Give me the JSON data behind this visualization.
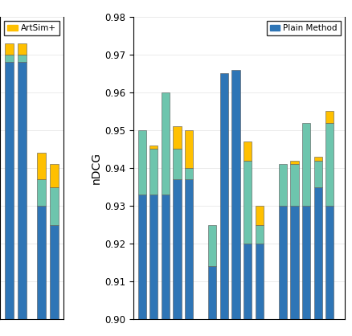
{
  "ylabel": "nDCG",
  "ylim": [
    0.9,
    0.98
  ],
  "yticks": [
    0.9,
    0.91,
    0.92,
    0.93,
    0.94,
    0.95,
    0.96,
    0.97,
    0.98
  ],
  "colors": {
    "plain": "#2E75B6",
    "mid": "#6DC5AD",
    "artsim": "#FFC000"
  },
  "left_bars": [
    {
      "plain": 0.968,
      "mid": 0.002,
      "artsim": 0.003
    },
    {
      "plain": 0.968,
      "mid": 0.002,
      "artsim": 0.003
    },
    {
      "plain": 0.93,
      "mid": 0.007,
      "artsim": 0.007
    },
    {
      "plain": 0.925,
      "mid": 0.01,
      "artsim": 0.006
    }
  ],
  "right_groups": [
    [
      {
        "plain": 0.933,
        "mid": 0.017,
        "artsim": 0.0
      },
      {
        "plain": 0.933,
        "mid": 0.012,
        "artsim": 0.001
      },
      {
        "plain": 0.933,
        "mid": 0.027,
        "artsim": 0.0
      },
      {
        "plain": 0.937,
        "mid": 0.008,
        "artsim": 0.006
      },
      {
        "plain": 0.937,
        "mid": 0.003,
        "artsim": 0.01
      }
    ],
    [
      {
        "plain": 0.914,
        "mid": 0.011,
        "artsim": 0.0
      },
      {
        "plain": 0.965,
        "mid": 0.0,
        "artsim": 0.0
      },
      {
        "plain": 0.966,
        "mid": 0.0,
        "artsim": 0.0
      },
      {
        "plain": 0.92,
        "mid": 0.022,
        "artsim": 0.005
      },
      {
        "plain": 0.92,
        "mid": 0.005,
        "artsim": 0.005
      }
    ],
    [
      {
        "plain": 0.93,
        "mid": 0.011,
        "artsim": 0.0
      },
      {
        "plain": 0.93,
        "mid": 0.011,
        "artsim": 0.001
      },
      {
        "plain": 0.93,
        "mid": 0.022,
        "artsim": 0.0
      },
      {
        "plain": 0.935,
        "mid": 0.007,
        "artsim": 0.001
      },
      {
        "plain": 0.93,
        "mid": 0.022,
        "artsim": 0.003
      }
    ]
  ]
}
